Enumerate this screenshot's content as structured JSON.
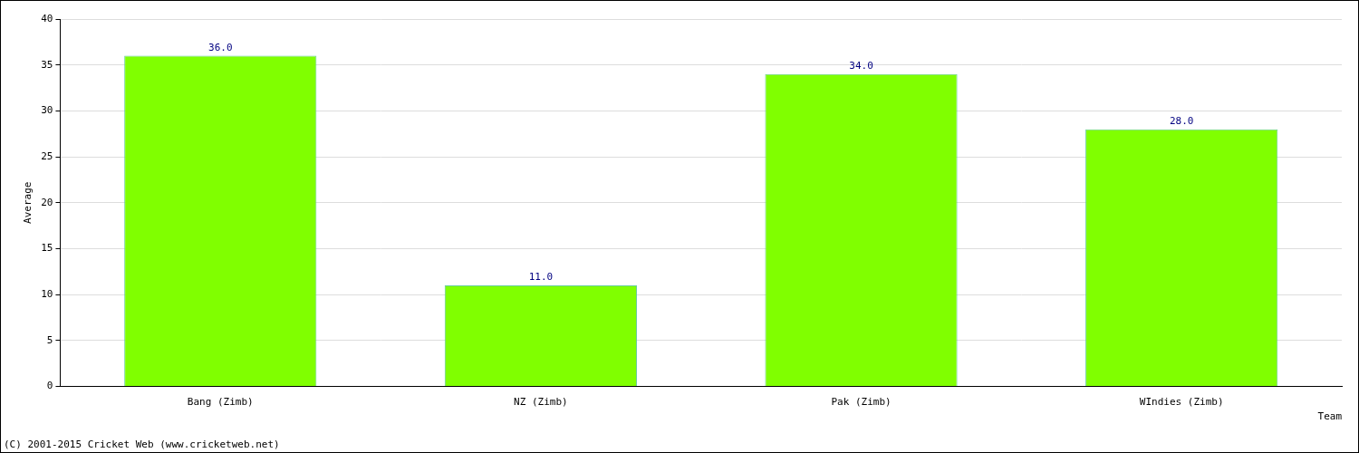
{
  "chart_data": {
    "type": "bar",
    "categories": [
      "Bang (Zimb)",
      "NZ (Zimb)",
      "Pak (Zimb)",
      "WIndies (Zimb)"
    ],
    "values": [
      36,
      11,
      34,
      28
    ],
    "value_labels": [
      "36.0",
      "11.0",
      "34.0",
      "28.0"
    ],
    "data_labels": true,
    "color": "#80ff00",
    "x_label": "Team",
    "y_label": "Average",
    "ylim": [
      0,
      40
    ],
    "yticks": [
      0,
      5,
      10,
      15,
      20,
      25,
      30,
      35,
      40
    ],
    "grid": true,
    "annotations": [
      "(C) 2001-2015 Cricket Web (www.cricketweb.net)"
    ]
  }
}
